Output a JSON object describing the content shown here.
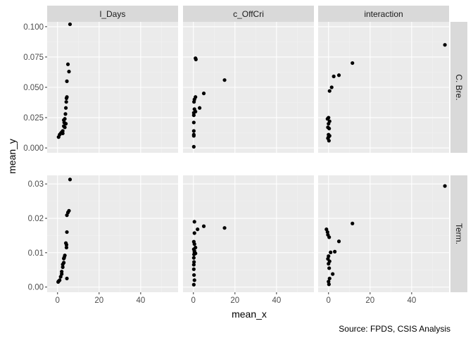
{
  "chart_data": {
    "type": "scatter",
    "facet_layout": "grid",
    "x_label": "mean_x",
    "y_label": "mean_y",
    "caption": "Source: FPDS, CSIS Analysis",
    "columns": [
      "l_Days",
      "c_OffCri",
      "interaction"
    ],
    "rows": [
      "C. Bre.",
      "Term."
    ],
    "xlim": [
      -5,
      58
    ],
    "x_ticks": [
      0,
      20,
      40
    ],
    "x_tick_labels": [
      "0",
      "20",
      "40"
    ],
    "row_scales": [
      {
        "ylim": [
          -0.004,
          0.104
        ],
        "ticks": [
          0,
          0.025,
          0.05,
          0.075,
          0.1
        ],
        "tick_labels": [
          "0.000",
          "0.025",
          "0.050",
          "0.075",
          "0.100"
        ]
      },
      {
        "ylim": [
          -0.0015,
          0.0325
        ],
        "ticks": [
          0,
          0.01,
          0.02,
          0.03
        ],
        "tick_labels": [
          "0.00",
          "0.01",
          "0.02",
          "0.03"
        ]
      }
    ],
    "grid": true,
    "panel_background": "#ebebeb",
    "strip_background": "#d9d9d9",
    "point_color": "#000000",
    "panels": [
      {
        "row": 0,
        "col": 0,
        "points": [
          [
            6,
            0.102
          ],
          [
            5,
            0.069
          ],
          [
            5.5,
            0.063
          ],
          [
            4.5,
            0.055
          ],
          [
            4.5,
            0.042
          ],
          [
            4.3,
            0.041
          ],
          [
            4.2,
            0.038
          ],
          [
            4,
            0.033
          ],
          [
            3.8,
            0.028
          ],
          [
            3.5,
            0.024
          ],
          [
            3,
            0.023
          ],
          [
            3.2,
            0.021
          ],
          [
            4,
            0.02
          ],
          [
            3,
            0.018
          ],
          [
            3.5,
            0.017
          ],
          [
            2.5,
            0.014
          ],
          [
            2,
            0.013
          ],
          [
            2.5,
            0.012
          ],
          [
            1.5,
            0.012
          ],
          [
            1,
            0.011
          ],
          [
            0.5,
            0.009
          ]
        ]
      },
      {
        "row": 0,
        "col": 1,
        "points": [
          [
            1,
            0.074
          ],
          [
            1.2,
            0.073
          ],
          [
            15,
            0.056
          ],
          [
            5,
            0.045
          ],
          [
            1,
            0.042
          ],
          [
            0.5,
            0.04
          ],
          [
            0.3,
            0.038
          ],
          [
            3,
            0.033
          ],
          [
            0.5,
            0.032
          ],
          [
            1,
            0.03
          ],
          [
            0.2,
            0.029
          ],
          [
            0.2,
            0.027
          ],
          [
            0.2,
            0.021
          ],
          [
            0.2,
            0.014
          ],
          [
            0.2,
            0.011
          ],
          [
            0.2,
            0.01
          ],
          [
            0.2,
            0.001
          ]
        ]
      },
      {
        "row": 0,
        "col": 2,
        "points": [
          [
            56,
            0.085
          ],
          [
            11.5,
            0.07
          ],
          [
            5,
            0.06
          ],
          [
            2.5,
            0.059
          ],
          [
            1.5,
            0.05
          ],
          [
            0.5,
            0.047
          ],
          [
            0,
            0.025
          ],
          [
            -0.5,
            0.024
          ],
          [
            0.5,
            0.022
          ],
          [
            0,
            0.02
          ],
          [
            -0.3,
            0.017
          ],
          [
            0.3,
            0.016
          ],
          [
            0,
            0.011
          ],
          [
            0.5,
            0.01
          ],
          [
            0,
            0.009
          ],
          [
            -0.3,
            0.008
          ],
          [
            0.2,
            0.006
          ]
        ]
      },
      {
        "row": 1,
        "col": 0,
        "points": [
          [
            6,
            0.0313
          ],
          [
            5.5,
            0.0222
          ],
          [
            5,
            0.0217
          ],
          [
            4.5,
            0.0209
          ],
          [
            4.5,
            0.016
          ],
          [
            4,
            0.0128
          ],
          [
            4.3,
            0.0123
          ],
          [
            4.3,
            0.0115
          ],
          [
            3.5,
            0.0092
          ],
          [
            3.2,
            0.0086
          ],
          [
            3,
            0.0083
          ],
          [
            3,
            0.0071
          ],
          [
            2.5,
            0.0066
          ],
          [
            2.5,
            0.0058
          ],
          [
            2,
            0.0045
          ],
          [
            2,
            0.0038
          ],
          [
            1.5,
            0.003
          ],
          [
            4.5,
            0.0025
          ],
          [
            1,
            0.002
          ],
          [
            0.5,
            0.0017
          ],
          [
            0.3,
            0.0015
          ]
        ]
      },
      {
        "row": 1,
        "col": 1,
        "points": [
          [
            0.5,
            0.019
          ],
          [
            5,
            0.0177
          ],
          [
            15,
            0.0172
          ],
          [
            2,
            0.0168
          ],
          [
            0.5,
            0.0157
          ],
          [
            0.2,
            0.0132
          ],
          [
            0.5,
            0.0125
          ],
          [
            1,
            0.0115
          ],
          [
            0.2,
            0.011
          ],
          [
            0.5,
            0.0105
          ],
          [
            0.5,
            0.0102
          ],
          [
            1,
            0.0098
          ],
          [
            0.3,
            0.0095
          ],
          [
            0.2,
            0.0085
          ],
          [
            0.3,
            0.0073
          ],
          [
            0.2,
            0.0065
          ],
          [
            0.2,
            0.0052
          ],
          [
            0.3,
            0.0035
          ],
          [
            0.5,
            0.002
          ],
          [
            0.2,
            0.0007
          ]
        ]
      },
      {
        "row": 1,
        "col": 2,
        "points": [
          [
            56,
            0.0294
          ],
          [
            11.5,
            0.0185
          ],
          [
            -1,
            0.0168
          ],
          [
            -0.5,
            0.016
          ],
          [
            -0.3,
            0.0152
          ],
          [
            0.3,
            0.0145
          ],
          [
            5,
            0.0133
          ],
          [
            3,
            0.0103
          ],
          [
            1,
            0.0101
          ],
          [
            0,
            0.009
          ],
          [
            -0.3,
            0.0082
          ],
          [
            0.5,
            0.0075
          ],
          [
            0,
            0.0068
          ],
          [
            0.3,
            0.0055
          ],
          [
            2,
            0.0038
          ],
          [
            0.5,
            0.0025
          ],
          [
            0,
            0.0016
          ],
          [
            0.2,
            0.0008
          ]
        ]
      }
    ]
  }
}
